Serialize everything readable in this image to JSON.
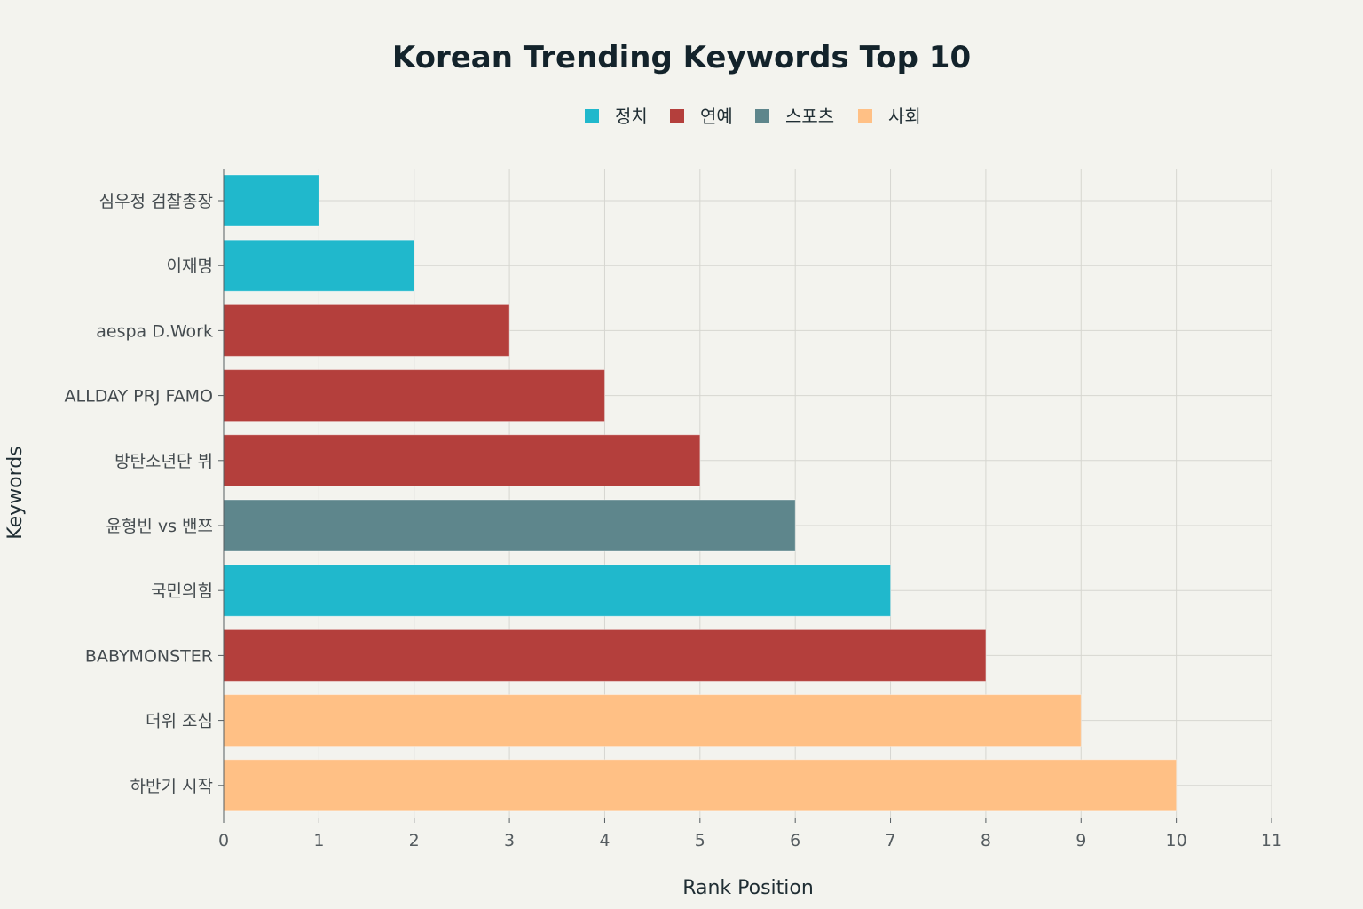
{
  "chart_data": {
    "type": "bar",
    "orientation": "horizontal",
    "title": "Korean Trending Keywords Top 10",
    "xlabel": "Rank Position",
    "ylabel": "Keywords",
    "xlim": [
      0,
      11
    ],
    "xticks": [
      0,
      1,
      2,
      3,
      4,
      5,
      6,
      7,
      8,
      9,
      10,
      11
    ],
    "grid": true,
    "legend_position": "top-center",
    "legend": [
      {
        "name": "정치",
        "color": "#20b8cc"
      },
      {
        "name": "연예",
        "color": "#b43f3c"
      },
      {
        "name": "스포츠",
        "color": "#5e868c"
      },
      {
        "name": "사회",
        "color": "#ffc085"
      }
    ],
    "categories": [
      "심우정 검찰총장",
      "이재명",
      "aespa D.Work",
      "ALLDAY PRJ FAMO",
      "방탄소년단 뷔",
      "윤형빈 vs 밴쯔",
      "국민의힘",
      "BABYMONSTER",
      "더위 조심",
      "하반기 시작"
    ],
    "values": [
      1,
      2,
      3,
      4,
      5,
      6,
      7,
      8,
      9,
      10
    ],
    "bar_groups": [
      "정치",
      "정치",
      "연예",
      "연예",
      "연예",
      "스포츠",
      "정치",
      "연예",
      "사회",
      "사회"
    ]
  }
}
